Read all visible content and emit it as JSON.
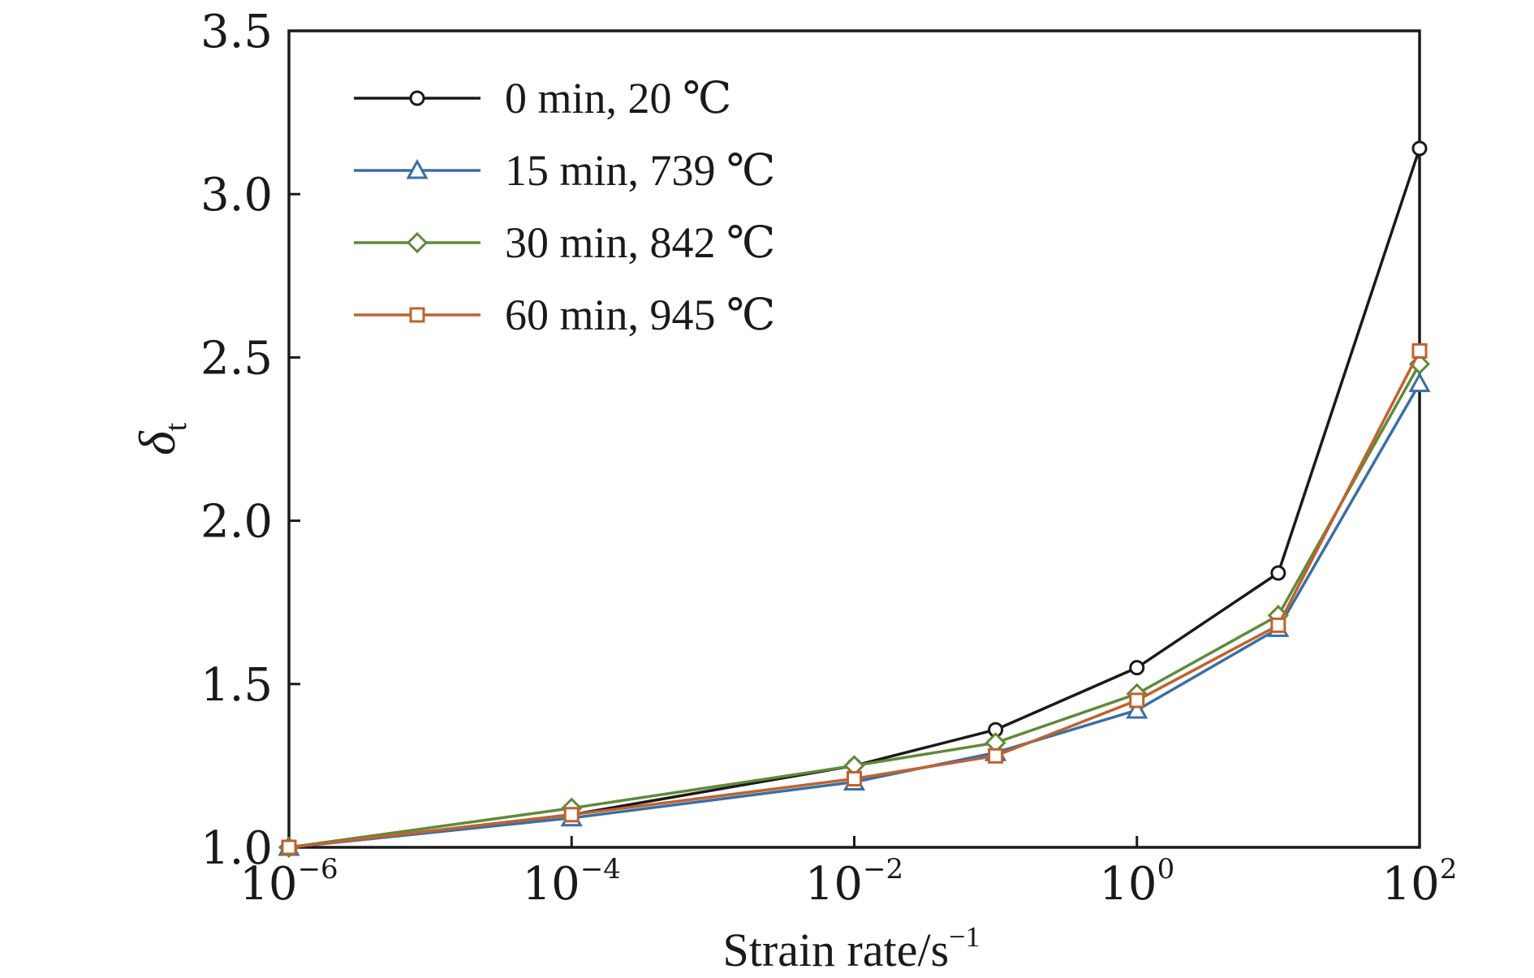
{
  "chart_data": {
    "type": "line",
    "xscale": "log",
    "xlabel": "Strain rate/s",
    "xlabel_sup": "−1",
    "ylabel": "δ",
    "ylabel_sub": "t",
    "xlim": [
      1e-06,
      100
    ],
    "ylim": [
      1.0,
      3.5
    ],
    "x": [
      1e-06,
      0.0001,
      0.01,
      0.1,
      1,
      10,
      100
    ],
    "xticks": [
      {
        "value": 1e-06,
        "base": "10",
        "exp": "−6"
      },
      {
        "value": 0.0001,
        "base": "10",
        "exp": "−4"
      },
      {
        "value": 0.01,
        "base": "10",
        "exp": "−2"
      },
      {
        "value": 1,
        "base": "10",
        "exp": "0"
      },
      {
        "value": 100,
        "base": "10",
        "exp": "2"
      }
    ],
    "yticks": [
      {
        "value": 1.0,
        "label": "1.0"
      },
      {
        "value": 1.5,
        "label": "1.5"
      },
      {
        "value": 2.0,
        "label": "2.0"
      },
      {
        "value": 2.5,
        "label": "2.5"
      },
      {
        "value": 3.0,
        "label": "3.0"
      },
      {
        "value": 3.5,
        "label": "3.5"
      }
    ],
    "grid": false,
    "legend_position": "top-left",
    "series": [
      {
        "name": "0 min, 20 ℃",
        "color": "#1a1a1a",
        "marker": "circle",
        "values": [
          1.0,
          1.1,
          1.25,
          1.36,
          1.55,
          1.84,
          3.14
        ]
      },
      {
        "name": "15 min, 739 ℃",
        "color": "#3a6fa6",
        "marker": "triangle",
        "values": [
          1.0,
          1.09,
          1.2,
          1.29,
          1.42,
          1.67,
          2.42
        ]
      },
      {
        "name": "30 min, 842 ℃",
        "color": "#5f8a3a",
        "marker": "diamond",
        "values": [
          1.0,
          1.12,
          1.25,
          1.32,
          1.47,
          1.71,
          2.48
        ]
      },
      {
        "name": "60 min, 945 ℃",
        "color": "#c0622e",
        "marker": "square",
        "values": [
          1.0,
          1.1,
          1.21,
          1.28,
          1.45,
          1.68,
          2.52
        ]
      }
    ]
  }
}
